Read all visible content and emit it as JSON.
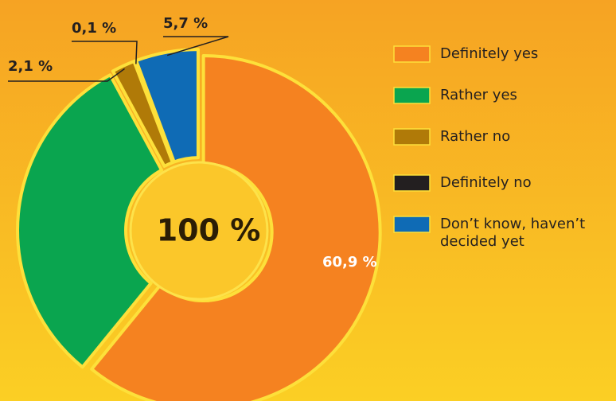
{
  "chart_data": {
    "type": "pie",
    "categories": [
      "Definitely yes",
      "Rather yes",
      "Rather no",
      "Definitely no",
      "Don’t know, haven’t decided yet"
    ],
    "values": [
      60.9,
      31.2,
      2.1,
      0.1,
      5.7
    ],
    "value_labels": [
      "60,9 %",
      null,
      "2,1 %",
      "0,1 %",
      "5,7 %"
    ],
    "colors": [
      "#f58220",
      "#0aa54f",
      "#b07a08",
      "#231f20",
      "#0f6bb5"
    ],
    "center_label": "100 %",
    "legend": "right"
  }
}
